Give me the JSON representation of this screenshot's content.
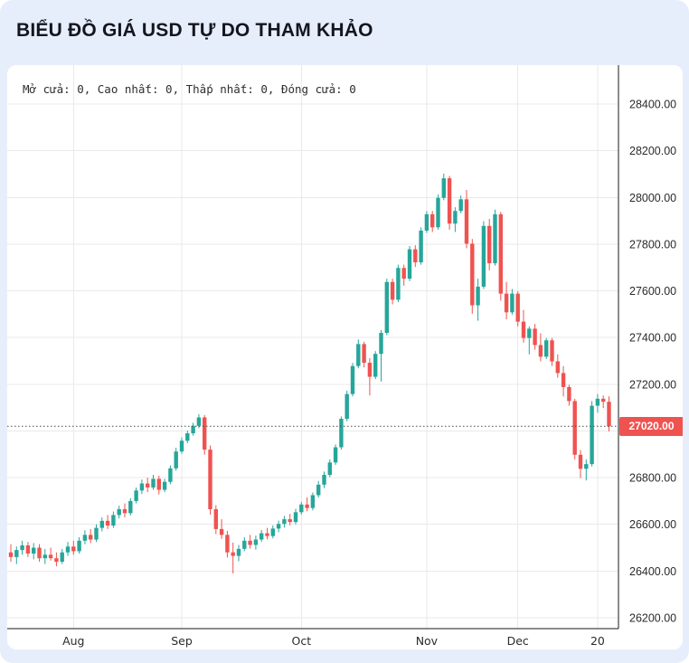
{
  "chart_data": {
    "type": "candlestick",
    "title": "BIỂU ĐỒ GIÁ USD TỰ DO THAM KHẢO",
    "ohlc_legend": "Mở cửa: 0, Cao nhất: 0, Thấp nhất: 0, Đóng cửa: 0",
    "ylim": [
      26200,
      28400
    ],
    "y_ticks": [
      26200,
      26400,
      26600,
      26800,
      27000,
      27200,
      27400,
      27600,
      27800,
      28000,
      28200,
      28400
    ],
    "x_ticks": [
      {
        "label": "Aug",
        "index": 11
      },
      {
        "label": "Sep",
        "index": 30
      },
      {
        "label": "Oct",
        "index": 51
      },
      {
        "label": "Nov",
        "index": 73
      },
      {
        "label": "Dec",
        "index": 89
      },
      {
        "label": "20",
        "index": 103
      }
    ],
    "price_line": {
      "value": 27020,
      "label": "27020.00",
      "color": "#ef5350"
    },
    "up_color": "#26a69a",
    "down_color": "#ef5350",
    "grid": true,
    "grid_color": "#e9e9e9",
    "axis_color": "#1a1a1a",
    "label_color": "#2b2b2b",
    "dotted_line_color": "#4a4a4a",
    "candles": [
      [
        26480,
        26515,
        26440,
        26460
      ],
      [
        26460,
        26505,
        26430,
        26490
      ],
      [
        26490,
        26530,
        26470,
        26510
      ],
      [
        26510,
        26525,
        26460,
        26475
      ],
      [
        26475,
        26520,
        26450,
        26500
      ],
      [
        26500,
        26515,
        26440,
        26455
      ],
      [
        26455,
        26495,
        26430,
        26470
      ],
      [
        26470,
        26500,
        26445,
        26455
      ],
      [
        26455,
        26480,
        26420,
        26440
      ],
      [
        26440,
        26495,
        26430,
        26480
      ],
      [
        26480,
        26525,
        26465,
        26505
      ],
      [
        26505,
        26530,
        26470,
        26485
      ],
      [
        26485,
        26545,
        26475,
        26530
      ],
      [
        26530,
        26575,
        26515,
        26555
      ],
      [
        26555,
        26580,
        26520,
        26535
      ],
      [
        26535,
        26600,
        26525,
        26585
      ],
      [
        26585,
        26630,
        26570,
        26615
      ],
      [
        26615,
        26640,
        26580,
        26595
      ],
      [
        26595,
        26655,
        26585,
        26640
      ],
      [
        26640,
        26680,
        26625,
        26665
      ],
      [
        26665,
        26690,
        26630,
        26648
      ],
      [
        26648,
        26712,
        26638,
        26700
      ],
      [
        26700,
        26758,
        26690,
        26745
      ],
      [
        26745,
        26792,
        26730,
        26775
      ],
      [
        26775,
        26800,
        26738,
        26758
      ],
      [
        26758,
        26812,
        26748,
        26795
      ],
      [
        26795,
        26808,
        26728,
        26748
      ],
      [
        26748,
        26795,
        26738,
        26782
      ],
      [
        26782,
        26852,
        26772,
        26840
      ],
      [
        26840,
        26928,
        26830,
        26912
      ],
      [
        26912,
        26972,
        26902,
        26958
      ],
      [
        26958,
        27002,
        26948,
        26990
      ],
      [
        26990,
        27035,
        26980,
        27022
      ],
      [
        27022,
        27072,
        27012,
        27058
      ],
      [
        27058,
        27068,
        26898,
        26920
      ],
      [
        26920,
        26938,
        26642,
        26665
      ],
      [
        26665,
        26682,
        26558,
        26580
      ],
      [
        26580,
        26622,
        26538,
        26555
      ],
      [
        26555,
        26572,
        26458,
        26480
      ],
      [
        26480,
        26522,
        26390,
        26465
      ],
      [
        26465,
        26512,
        26442,
        26495
      ],
      [
        26495,
        26545,
        26485,
        26530
      ],
      [
        26530,
        26555,
        26496,
        26512
      ],
      [
        26512,
        26552,
        26492,
        26535
      ],
      [
        26535,
        26576,
        26525,
        26562
      ],
      [
        26562,
        26585,
        26536,
        26550
      ],
      [
        26550,
        26596,
        26540,
        26582
      ],
      [
        26582,
        26616,
        26566,
        26602
      ],
      [
        26602,
        26636,
        26586,
        26622
      ],
      [
        26622,
        26645,
        26596,
        26610
      ],
      [
        26610,
        26666,
        26600,
        26652
      ],
      [
        26652,
        26696,
        26642,
        26685
      ],
      [
        26685,
        26716,
        26656,
        26670
      ],
      [
        26670,
        26736,
        26660,
        26725
      ],
      [
        26725,
        26786,
        26715,
        26770
      ],
      [
        26770,
        26826,
        26756,
        26812
      ],
      [
        26812,
        26878,
        26802,
        26865
      ],
      [
        26865,
        26942,
        26855,
        26930
      ],
      [
        26930,
        27062,
        26920,
        27052
      ],
      [
        27052,
        27172,
        27042,
        27158
      ],
      [
        27158,
        27292,
        27148,
        27278
      ],
      [
        27278,
        27392,
        27268,
        27372
      ],
      [
        27372,
        27382,
        27272,
        27292
      ],
      [
        27292,
        27312,
        27152,
        27232
      ],
      [
        27232,
        27342,
        27222,
        27330
      ],
      [
        27330,
        27432,
        27212,
        27420
      ],
      [
        27420,
        27652,
        27410,
        27638
      ],
      [
        27638,
        27652,
        27542,
        27562
      ],
      [
        27562,
        27712,
        27552,
        27698
      ],
      [
        27698,
        27712,
        27622,
        27652
      ],
      [
        27652,
        27792,
        27642,
        27778
      ],
      [
        27778,
        27795,
        27702,
        27722
      ],
      [
        27722,
        27872,
        27712,
        27858
      ],
      [
        27858,
        27942,
        27848,
        27928
      ],
      [
        27928,
        27942,
        27852,
        27872
      ],
      [
        27872,
        28012,
        27862,
        27998
      ],
      [
        27998,
        28102,
        27988,
        28082
      ],
      [
        28082,
        28092,
        27862,
        27888
      ],
      [
        27888,
        27958,
        27852,
        27942
      ],
      [
        27942,
        28008,
        27932,
        27992
      ],
      [
        27992,
        28032,
        27782,
        27802
      ],
      [
        27802,
        27822,
        27502,
        27538
      ],
      [
        27538,
        27652,
        27472,
        27618
      ],
      [
        27618,
        27898,
        27608,
        27878
      ],
      [
        27878,
        27908,
        27688,
        27718
      ],
      [
        27718,
        27948,
        27708,
        27928
      ],
      [
        27928,
        27938,
        27558,
        27588
      ],
      [
        27588,
        27638,
        27478,
        27508
      ],
      [
        27508,
        27608,
        27498,
        27588
      ],
      [
        27588,
        27598,
        27448,
        27468
      ],
      [
        27468,
        27518,
        27378,
        27398
      ],
      [
        27398,
        27448,
        27328,
        27438
      ],
      [
        27438,
        27458,
        27348,
        27368
      ],
      [
        27368,
        27418,
        27298,
        27318
      ],
      [
        27318,
        27398,
        27308,
        27388
      ],
      [
        27388,
        27398,
        27278,
        27298
      ],
      [
        27298,
        27328,
        27228,
        27248
      ],
      [
        27248,
        27278,
        27148,
        27188
      ],
      [
        27188,
        27198,
        27108,
        27128
      ],
      [
        27128,
        27138,
        26878,
        26898
      ],
      [
        26898,
        26918,
        26798,
        26838
      ],
      [
        26838,
        26878,
        26788,
        26858
      ],
      [
        26858,
        27128,
        26848,
        27108
      ],
      [
        27108,
        27158,
        27078,
        27138
      ],
      [
        27138,
        27152,
        27098,
        27125
      ],
      [
        27125,
        27148,
        26998,
        27020
      ]
    ]
  }
}
